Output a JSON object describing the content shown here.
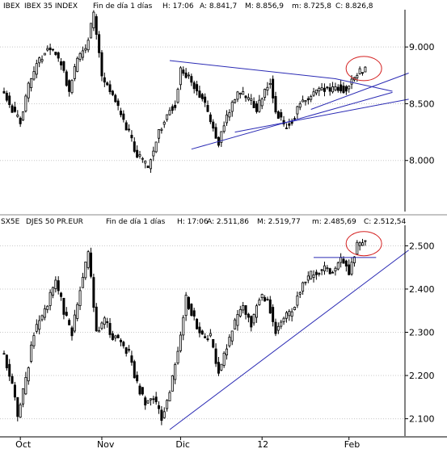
{
  "colors": {
    "background": "#ffffff",
    "text": "#000000",
    "candle": "#000000",
    "grid": "#c8c8c8",
    "trendline": "#2a2ab4",
    "highlight": "#d42020"
  },
  "chart_data": [
    {
      "type": "candlestick",
      "title": "IBEX - IBEX 35 INDEX - Fin de día 1 días  H: 17:06  A: 8.841,7  M: 8.856,9  m: 8.725,8  C: 8.826,8",
      "title_parts": {
        "symbol": "IBEX",
        "name": "IBEX 35 INDEX",
        "interval": "Fin de día 1 días",
        "time": "H: 17:06",
        "open": "A: 8.841,7",
        "high": "M: 8.856,9",
        "low": "m: 8.725,8",
        "close": "C: 8.826,8"
      },
      "ylim": [
        7550,
        9300
      ],
      "yticks": [
        {
          "value": 8000,
          "label": "8.000"
        },
        {
          "value": 8500,
          "label": "8.500"
        },
        {
          "value": 9000,
          "label": "9.000"
        }
      ],
      "anchors": [
        [
          0,
          8600
        ],
        [
          4,
          8400
        ],
        [
          6,
          8350
        ],
        [
          9,
          8650
        ],
        [
          13,
          8900
        ],
        [
          17,
          9000
        ],
        [
          21,
          8850
        ],
        [
          24,
          8600
        ],
        [
          27,
          8900
        ],
        [
          30,
          9000
        ],
        [
          33,
          9280
        ],
        [
          36,
          8750
        ],
        [
          39,
          8600
        ],
        [
          42,
          8450
        ],
        [
          45,
          8300
        ],
        [
          49,
          8050
        ],
        [
          53,
          7950
        ],
        [
          57,
          8250
        ],
        [
          61,
          8450
        ],
        [
          63,
          8500
        ],
        [
          65,
          8800
        ],
        [
          69,
          8700
        ],
        [
          73,
          8550
        ],
        [
          76,
          8350
        ],
        [
          79,
          8150
        ],
        [
          82,
          8400
        ],
        [
          86,
          8600
        ],
        [
          90,
          8550
        ],
        [
          93,
          8450
        ],
        [
          96,
          8600
        ],
        [
          98,
          8700
        ],
        [
          100,
          8450
        ],
        [
          103,
          8300
        ],
        [
          106,
          8350
        ],
        [
          109,
          8500
        ],
        [
          113,
          8550
        ],
        [
          117,
          8650
        ],
        [
          120,
          8600
        ],
        [
          123,
          8650
        ],
        [
          126,
          8620
        ],
        [
          129,
          8750
        ],
        [
          131,
          8780
        ],
        [
          133,
          8800
        ]
      ],
      "overlays": {
        "triangle_upper": [
          [
            61,
            8880
          ],
          [
            122,
            8720
          ],
          [
            143,
            8610
          ]
        ],
        "triangle_lower": [
          [
            69,
            8100
          ],
          [
            143,
            8600
          ]
        ],
        "triangle_support": [
          [
            85,
            8250
          ],
          [
            149,
            8540
          ]
        ],
        "triangle_breakout": [
          [
            113,
            8450
          ],
          [
            149,
            8770
          ]
        ],
        "highlight_ellipse": {
          "x": 131,
          "y": 8810
        }
      }
    },
    {
      "type": "candlestick",
      "title": "SX5E - DJES 50 PR.EUR - Fin de día 1 días  H: 17:06  A: 2.511,86  M: 2.519,77  m: 2.485,69  C: 2.512,54",
      "title_parts": {
        "symbol": "SX5E",
        "name": "DJES 50 PR.EUR",
        "interval": "Fin de día 1 días",
        "time": "H: 17:06",
        "open": "A: 2.511,86",
        "high": "M: 2.519,77",
        "low": "m: 2.485,69",
        "close": "C: 2.512,54"
      },
      "ylim": [
        2060,
        2540
      ],
      "yticks": [
        {
          "value": 2100,
          "label": "2.100"
        },
        {
          "value": 2200,
          "label": "2.200"
        },
        {
          "value": 2300,
          "label": "2.300"
        },
        {
          "value": 2400,
          "label": "2.400"
        },
        {
          "value": 2500,
          "label": "2.500"
        }
      ],
      "anchors": [
        [
          0,
          2250
        ],
        [
          3,
          2180
        ],
        [
          5,
          2110
        ],
        [
          8,
          2190
        ],
        [
          11,
          2300
        ],
        [
          15,
          2350
        ],
        [
          19,
          2420
        ],
        [
          22,
          2350
        ],
        [
          25,
          2300
        ],
        [
          28,
          2400
        ],
        [
          31,
          2480
        ],
        [
          34,
          2300
        ],
        [
          37,
          2330
        ],
        [
          40,
          2290
        ],
        [
          43,
          2280
        ],
        [
          46,
          2250
        ],
        [
          49,
          2180
        ],
        [
          52,
          2140
        ],
        [
          55,
          2150
        ],
        [
          58,
          2100
        ],
        [
          61,
          2160
        ],
        [
          64,
          2260
        ],
        [
          67,
          2380
        ],
        [
          70,
          2330
        ],
        [
          73,
          2290
        ],
        [
          76,
          2290
        ],
        [
          79,
          2210
        ],
        [
          82,
          2270
        ],
        [
          85,
          2320
        ],
        [
          88,
          2360
        ],
        [
          91,
          2320
        ],
        [
          94,
          2380
        ],
        [
          97,
          2380
        ],
        [
          100,
          2300
        ],
        [
          103,
          2330
        ],
        [
          106,
          2350
        ],
        [
          109,
          2400
        ],
        [
          112,
          2430
        ],
        [
          115,
          2440
        ],
        [
          118,
          2450
        ],
        [
          121,
          2440
        ],
        [
          124,
          2470
        ],
        [
          127,
          2440
        ],
        [
          130,
          2500
        ],
        [
          133,
          2510
        ]
      ],
      "overlays": {
        "support_line": [
          [
            61,
            2075
          ],
          [
            149,
            2490
          ]
        ],
        "resistance_line": [
          [
            114,
            2473
          ],
          [
            137,
            2473
          ]
        ],
        "highlight_ellipse": {
          "x": 131,
          "y": 2505
        }
      }
    }
  ],
  "xaxis": {
    "months": [
      {
        "label": "Oct",
        "index": 6
      },
      {
        "label": "Nov",
        "index": 36
      },
      {
        "label": "Dic",
        "index": 65
      },
      {
        "label": "12",
        "index": 95
      },
      {
        "label": "Feb",
        "index": 127
      }
    ]
  }
}
